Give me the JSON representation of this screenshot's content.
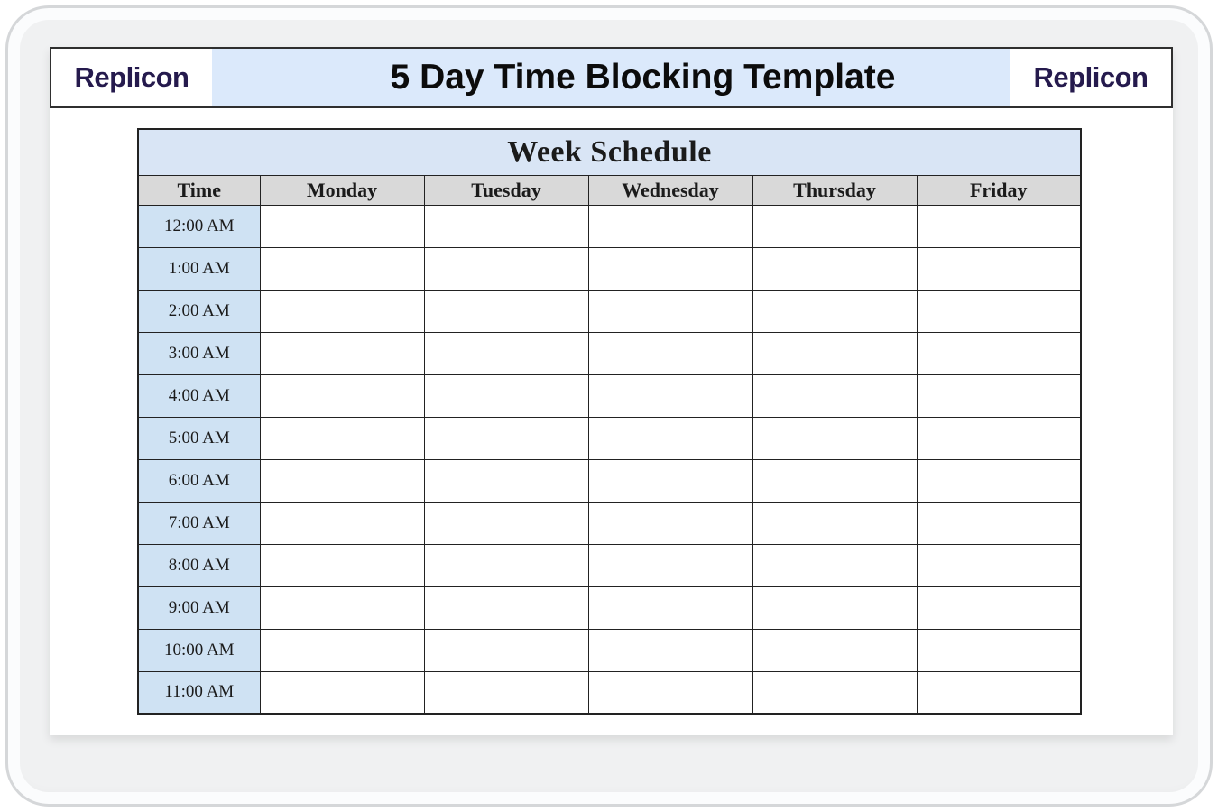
{
  "header": {
    "logo_left": "Replicon",
    "title": "5 Day Time Blocking Template",
    "logo_right": "Replicon"
  },
  "table": {
    "title": "Week Schedule",
    "columns": [
      "Time",
      "Monday",
      "Tuesday",
      "Wednesday",
      "Thursday",
      "Friday"
    ],
    "times": [
      "12:00 AM",
      "1:00 AM",
      "2:00 AM",
      "3:00 AM",
      "4:00 AM",
      "5:00 AM",
      "6:00 AM",
      "7:00 AM",
      "8:00 AM",
      "9:00 AM",
      "10:00 AM",
      "11:00 AM"
    ]
  },
  "colors": {
    "header_blue": "#dbe9fb",
    "table_title_blue": "#d9e5f5",
    "time_cell_blue": "#cfe2f3",
    "day_header_gray": "#d9d9d9",
    "table_border": "#222222",
    "replicon_navy": "#251a4d",
    "frame_gray": "#f0f1f2"
  }
}
